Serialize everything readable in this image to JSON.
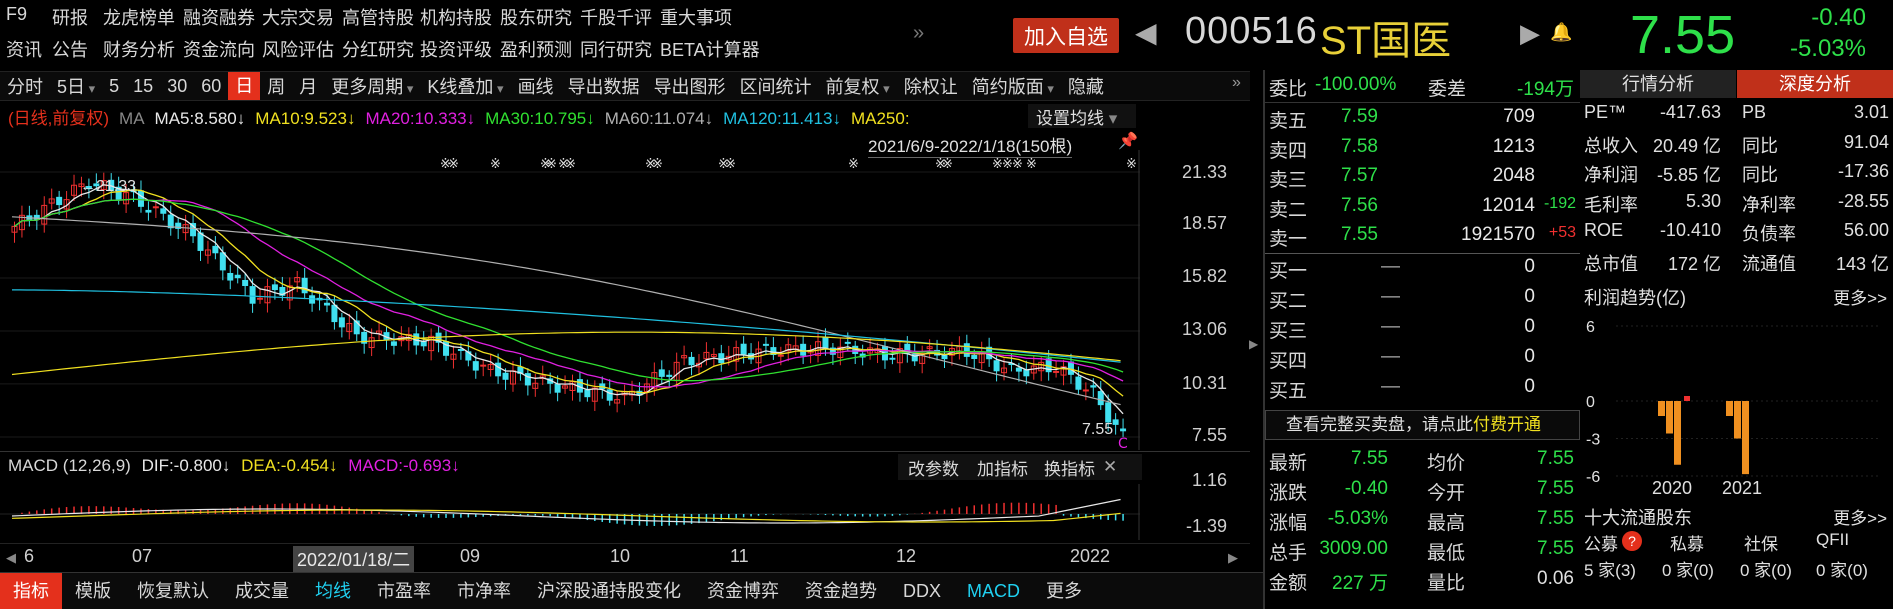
{
  "nav_top": [
    "F9",
    "研报",
    "龙虎榜单",
    "融资融券",
    "大宗交易",
    "高管持股",
    "机构持股",
    "股东研究",
    "千股千评",
    "重大事项"
  ],
  "nav_bottom": [
    "资讯",
    "公告",
    "财务分析",
    "资金流向",
    "风险评估",
    "分红研究",
    "投资评级",
    "盈利预测",
    "同行研究",
    "BETA计算器"
  ],
  "more_arrows": "»",
  "add_watch": "加入自选",
  "stock_code": "000516",
  "stock_name": "ST国医",
  "price": "7.55",
  "change": "-0.40",
  "change_pct": "-5.03%",
  "toolbar": [
    "分时",
    "5日",
    "5",
    "15",
    "30",
    "60",
    "日",
    "周",
    "月",
    "更多周期",
    "K线叠加",
    "画线",
    "导出数据",
    "导出图形",
    "区间统计",
    "前复权",
    "除权让",
    "简约版面",
    "隐藏"
  ],
  "toolbar_selected": "日",
  "ma_line": {
    "mode": "(日线,前复权)",
    "ma": "MA",
    "ma5": "MA5:8.580↓",
    "ma10": "MA10:9.523↓",
    "ma20": "MA20:10.333↓",
    "ma30": "MA30:10.795↓",
    "ma60": "MA60:11.074↓",
    "ma120": "MA120:11.413↓",
    "ma250": "MA250:"
  },
  "set_ma": "设置均线",
  "range": "2021/6/9-2022/1/18(150根)",
  "high_mark": "21.33",
  "last_mark": "7.55",
  "price_axis": [
    "21.33",
    "18.57",
    "15.82",
    "13.06",
    "10.31",
    "7.55"
  ],
  "macd": {
    "title": "MACD (12,26,9)",
    "dif": "DIF:-0.800↓",
    "dea": "DEA:-0.454↓",
    "macd": "MACD:-0.693↓",
    "btn1": "改参数",
    "btn2": "加指标",
    "btn3": "换指标",
    "axis": [
      "1.16",
      "-1.39"
    ]
  },
  "xaxis": {
    "labels": [
      "6",
      "07",
      "2022/01/18/二",
      "09",
      "10",
      "11",
      "12",
      "2022"
    ]
  },
  "bottom_tabs": [
    "指标",
    "模版",
    "恢复默认",
    "成交量",
    "均线",
    "市盈率",
    "市净率",
    "沪深股通持股变化",
    "资金博弈",
    "资金趋势",
    "DDX",
    "MACD",
    "更多"
  ],
  "bottom_selected": "指标",
  "order": {
    "weibi_label": "委比",
    "weibi": "-100.00%",
    "weicha_label": "委差",
    "weicha": "-194万",
    "asks": [
      {
        "l": "卖五",
        "p": "7.59",
        "v": "709",
        "d": ""
      },
      {
        "l": "卖四",
        "p": "7.58",
        "v": "1213",
        "d": ""
      },
      {
        "l": "卖三",
        "p": "7.57",
        "v": "2048",
        "d": ""
      },
      {
        "l": "卖二",
        "p": "7.56",
        "v": "12014",
        "d": "-192"
      },
      {
        "l": "卖一",
        "p": "7.55",
        "v": "1921570",
        "d": "+53"
      }
    ],
    "bids": [
      {
        "l": "买一",
        "p": "—",
        "v": "0"
      },
      {
        "l": "买二",
        "p": "—",
        "v": "0"
      },
      {
        "l": "买三",
        "p": "—",
        "v": "0"
      },
      {
        "l": "买四",
        "p": "—",
        "v": "0"
      },
      {
        "l": "买五",
        "p": "—",
        "v": "0"
      }
    ],
    "notice": "查看完整买卖盘，请点此",
    "notice_link": "付费开通"
  },
  "quote": [
    {
      "l1": "最新",
      "v1": "7.55",
      "l2": "均价",
      "v2": "7.55"
    },
    {
      "l1": "涨跌",
      "v1": "-0.40",
      "l2": "今开",
      "v2": "7.55"
    },
    {
      "l1": "涨幅",
      "v1": "-5.03%",
      "l2": "最高",
      "v2": "7.55"
    },
    {
      "l1": "总手",
      "v1": "3009.00",
      "l2": "最低",
      "v2": "7.55"
    },
    {
      "l1": "金额",
      "v1": "227 万",
      "l2": "量比",
      "v2": "0.06"
    }
  ],
  "analysis": {
    "tab1": "行情分析",
    "tab2": "深度分析",
    "rows": [
      {
        "l1": "PE™",
        "v1": "-417.63",
        "l2": "PB",
        "v2": "3.01"
      },
      {
        "l1": "总收入",
        "v1": "20.49 亿",
        "l2": "同比",
        "v2": "91.04"
      },
      {
        "l1": "净利润",
        "v1": "-5.85 亿",
        "l2": "同比",
        "v2": "-17.36"
      },
      {
        "l1": "毛利率",
        "v1": "5.30",
        "l2": "净利率",
        "v2": "-28.55"
      },
      {
        "l1": "ROE",
        "v1": "-10.410",
        "l2": "负债率",
        "v2": "56.00"
      },
      {
        "l1": "总市值",
        "v1": "172 亿",
        "l2": "流通值",
        "v2": "143 亿"
      }
    ],
    "profit_title": "利润趋势(亿)",
    "more": "更多>>",
    "profit_axis": [
      "6",
      "0",
      "-3",
      "-6"
    ],
    "profit_years": [
      "2020",
      "2021"
    ],
    "holders_title": "十大流通股东",
    "holders_more": "更多>>",
    "holders": [
      "公募",
      "私募",
      "社保",
      "QFII"
    ],
    "holders_vals": [
      "5 家(3)",
      "0 家(0)",
      "0 家(0)",
      "0 家(0)"
    ]
  },
  "chart_data": {
    "type": "candlestick",
    "title": "(日线,前复权)",
    "range": "2021/6/9-2022/1/18(150根)",
    "y_range": [
      7.55,
      21.33
    ],
    "high": 21.33,
    "last": 7.55,
    "ma": {
      "MA5": 8.58,
      "MA10": 9.523,
      "MA20": 10.333,
      "MA30": 10.795,
      "MA60": 11.074,
      "MA120": 11.413
    },
    "macd": {
      "DIF": -0.8,
      "DEA": -0.454,
      "MACD": -0.693,
      "y_range": [
        -1.39,
        1.16
      ]
    },
    "profit_trend": {
      "years": [
        "2020",
        "2021"
      ],
      "y_range": [
        -6,
        6
      ]
    }
  }
}
